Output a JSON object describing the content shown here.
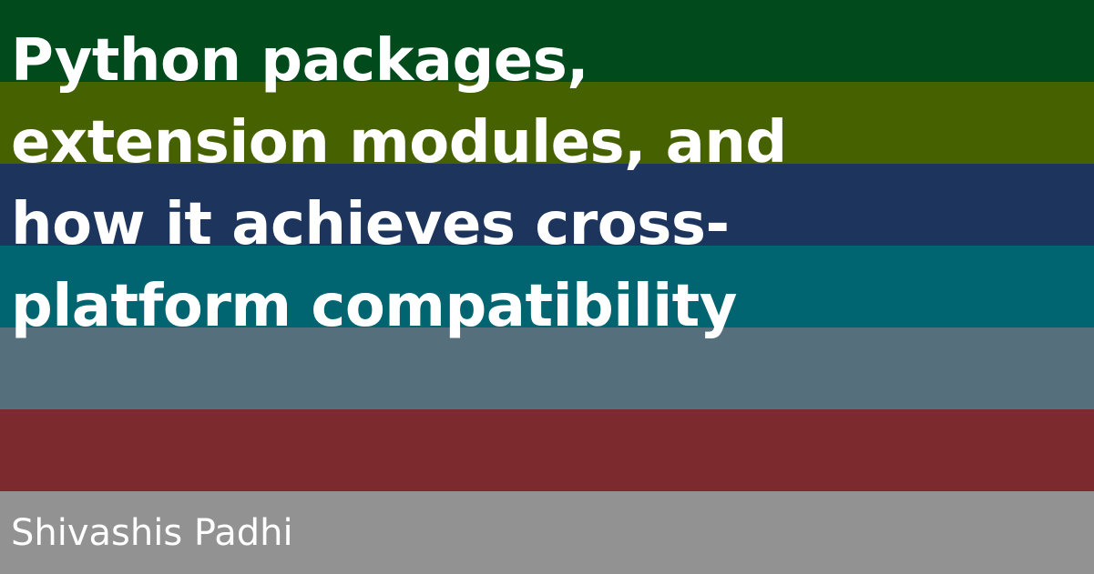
{
  "colors": {
    "stripes": [
      "#004a1c",
      "#466200",
      "#1d355c",
      "#006570",
      "#55707c",
      "#7d2a2f",
      "#929292"
    ],
    "text": "#ffffff"
  },
  "title": {
    "lines": [
      "Python packages,",
      "extension modules, and",
      "how it achieves cross-",
      "platform compatibility"
    ]
  },
  "author": "Shivashis Padhi"
}
